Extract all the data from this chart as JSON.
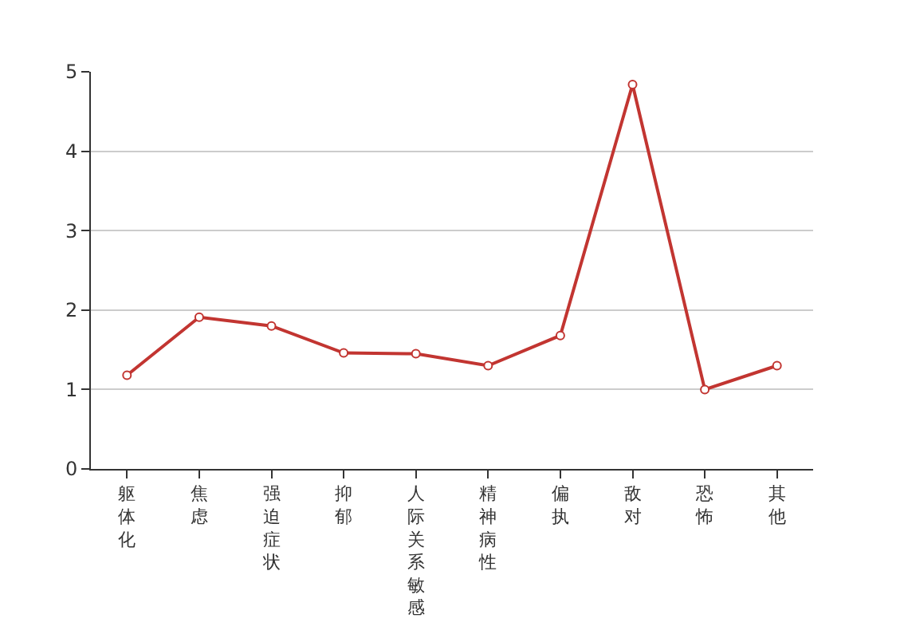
{
  "chart_data": {
    "type": "line",
    "categories": [
      "躯体化",
      "焦虑",
      "强迫症状",
      "抑郁",
      "人际关系敏感",
      "精神病性",
      "偏执",
      "敌对",
      "恐怖",
      "其他"
    ],
    "series": [
      {
        "color": "#c23531",
        "values": [
          1.18,
          1.91,
          1.8,
          1.46,
          1.45,
          1.3,
          1.68,
          4.84,
          1.0,
          1.3
        ]
      }
    ],
    "ylim": [
      0,
      5
    ],
    "yticks": [
      0,
      1,
      2,
      3,
      4,
      5
    ],
    "grid": "y",
    "legend": false,
    "marker": "circle",
    "line_style": "solid"
  }
}
